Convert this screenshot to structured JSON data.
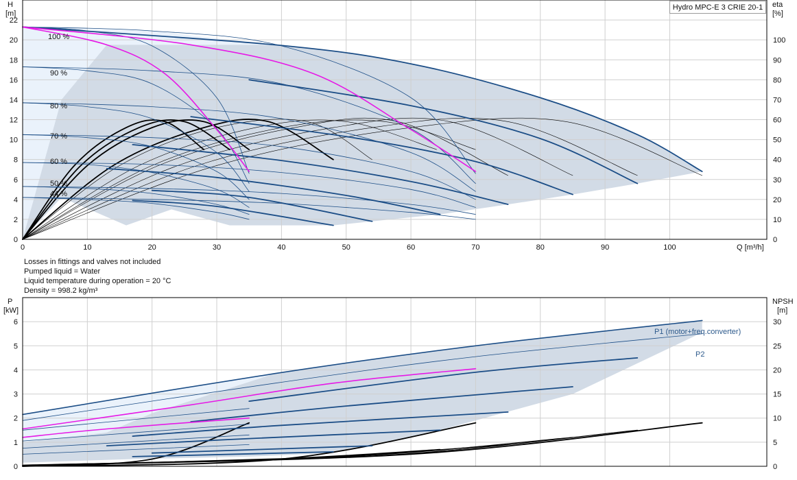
{
  "chart_data": [
    {
      "type": "line",
      "title": "Hydro MPC-E 3 CRIE 20-1",
      "xlabel": "Q [m³/h]",
      "ylabel_left": [
        "H",
        "[m]"
      ],
      "ylabel_right": [
        "eta",
        "[%]"
      ],
      "xlim": [
        0,
        115
      ],
      "ylim_left": [
        0,
        24
      ],
      "ylim_right": [
        0,
        120
      ],
      "x_ticks": [
        "0",
        "10",
        "20",
        "30",
        "40",
        "50",
        "60",
        "70",
        "80",
        "90",
        "100"
      ],
      "y_ticks_left": [
        "0",
        "2",
        "4",
        "6",
        "8",
        "10",
        "12",
        "14",
        "16",
        "18",
        "20",
        "22"
      ],
      "y_ticks_right": [
        "0",
        "10",
        "20",
        "30",
        "40",
        "50",
        "60",
        "70",
        "80",
        "90",
        "100"
      ],
      "grid": true,
      "speed_labels": [
        "100 %",
        "90 %",
        "80 %",
        "70 %",
        "60 %",
        "50 %",
        "44 %"
      ],
      "head_curves_1_pump": [
        {
          "x": [
            0,
            10,
            20,
            30,
            35
          ],
          "y": [
            21.3,
            20.9,
            19.4,
            14.2,
            6.6
          ]
        },
        {
          "x": [
            0,
            10,
            20,
            30,
            35
          ],
          "y": [
            17.3,
            16.9,
            15.6,
            11.1,
            5.6
          ]
        },
        {
          "x": [
            0,
            10,
            20,
            30,
            35
          ],
          "y": [
            13.7,
            13.3,
            12.1,
            8.7,
            4.8
          ]
        },
        {
          "x": [
            0,
            10,
            20,
            30,
            35
          ],
          "y": [
            10.5,
            10.2,
            9.3,
            6.8,
            4.0
          ]
        },
        {
          "x": [
            0,
            10,
            20,
            30,
            35
          ],
          "y": [
            7.7,
            7.5,
            6.7,
            5.0,
            3.2
          ]
        },
        {
          "x": [
            0,
            10,
            20,
            30,
            35
          ],
          "y": [
            5.3,
            5.1,
            4.6,
            3.5,
            2.5
          ]
        },
        {
          "x": [
            0,
            10,
            20,
            30,
            35
          ],
          "y": [
            4.2,
            4.0,
            3.6,
            2.7,
            2.0
          ]
        }
      ],
      "head_curves_2_pumps": [
        {
          "x": [
            0,
            20,
            40,
            60,
            70
          ],
          "y": [
            21.3,
            20.9,
            19.4,
            14.2,
            6.6
          ]
        },
        {
          "x": [
            0,
            20,
            40,
            60,
            70
          ],
          "y": [
            17.3,
            16.9,
            15.6,
            11.1,
            5.6
          ]
        },
        {
          "x": [
            0,
            20,
            40,
            60,
            70
          ],
          "y": [
            13.7,
            13.3,
            12.1,
            8.7,
            4.8
          ]
        },
        {
          "x": [
            0,
            20,
            40,
            60,
            70
          ],
          "y": [
            10.5,
            10.2,
            9.3,
            6.8,
            4.0
          ]
        },
        {
          "x": [
            0,
            20,
            40,
            60,
            70
          ],
          "y": [
            7.7,
            7.5,
            6.7,
            5.0,
            3.2
          ]
        },
        {
          "x": [
            0,
            20,
            40,
            60,
            70
          ],
          "y": [
            5.3,
            5.1,
            4.6,
            3.5,
            2.5
          ]
        },
        {
          "x": [
            0,
            20,
            40,
            60,
            70
          ],
          "y": [
            4.2,
            4.0,
            3.6,
            2.7,
            2.0
          ]
        }
      ],
      "head_curves_3_pumps": [
        {
          "x": [
            0,
            39,
            60,
            80,
            95,
            105
          ],
          "y": [
            21.3,
            19.5,
            17.6,
            14.2,
            10.5,
            6.8
          ]
        },
        {
          "x": [
            35,
            60,
            80,
            95
          ],
          "y": [
            16.0,
            13.4,
            10.1,
            5.6
          ]
        },
        {
          "x": [
            26,
            50,
            70,
            85
          ],
          "y": [
            12.3,
            10.3,
            7.8,
            4.5
          ]
        },
        {
          "x": [
            17,
            40,
            60,
            75
          ],
          "y": [
            9.5,
            7.9,
            5.8,
            3.5
          ]
        },
        {
          "x": [
            13,
            30,
            50,
            64.5
          ],
          "y": [
            7.1,
            6.2,
            4.4,
            2.5
          ]
        },
        {
          "x": [
            20,
            35,
            54
          ],
          "y": [
            4.9,
            4.2,
            1.8
          ]
        },
        {
          "x": [
            17,
            30,
            48
          ],
          "y": [
            3.9,
            3.3,
            1.4
          ]
        }
      ],
      "magenta_curves": [
        {
          "x": [
            0,
            13,
            22,
            30,
            35
          ],
          "y": [
            21.3,
            19.5,
            16.6,
            11.0,
            6.8
          ]
        },
        {
          "x": [
            0,
            26,
            45,
            60,
            70
          ],
          "y": [
            21.3,
            19.5,
            16.6,
            11.0,
            6.8
          ]
        }
      ],
      "efficiency_curves_percent": [
        {
          "x": [
            0,
            10,
            20,
            28,
            35
          ],
          "y": [
            0,
            37,
            56,
            59,
            45
          ]
        },
        {
          "x": [
            0,
            20,
            40,
            56,
            70
          ],
          "y": [
            0,
            37,
            56,
            59,
            45
          ]
        },
        {
          "x": [
            0,
            30,
            60,
            84,
            105
          ],
          "y": [
            0,
            37,
            56,
            59,
            32
          ]
        },
        {
          "x": [
            0,
            9,
            18,
            25,
            32
          ],
          "y": [
            0,
            37,
            56,
            59,
            45
          ]
        },
        {
          "x": [
            0,
            18,
            36,
            50,
            64
          ],
          "y": [
            0,
            37,
            56,
            59,
            45
          ]
        },
        {
          "x": [
            0,
            27,
            54,
            75,
            95
          ],
          "y": [
            0,
            37,
            56,
            59,
            32
          ]
        },
        {
          "x": [
            0,
            8,
            16,
            22,
            28
          ],
          "y": [
            0,
            37,
            56,
            59,
            45
          ]
        },
        {
          "x": [
            0,
            15,
            30,
            44,
            54
          ],
          "y": [
            0,
            37,
            56,
            59,
            40
          ]
        },
        {
          "x": [
            0,
            24,
            48,
            66,
            85
          ],
          "y": [
            0,
            37,
            56,
            59,
            32
          ]
        },
        {
          "x": [
            0,
            14,
            28,
            38,
            48
          ],
          "y": [
            0,
            37,
            56,
            59,
            40
          ]
        },
        {
          "x": [
            0,
            21,
            42,
            58,
            75
          ],
          "y": [
            0,
            37,
            56,
            59,
            32
          ]
        }
      ]
    },
    {
      "type": "line",
      "ylabel_left": [
        "P",
        "[kW]"
      ],
      "ylabel_right": [
        "NPSH",
        "[m]"
      ],
      "xlim": [
        0,
        115
      ],
      "ylim_left": [
        0,
        7
      ],
      "ylim_right": [
        0,
        35
      ],
      "y_ticks_left": [
        "0",
        "1",
        "2",
        "3",
        "4",
        "5",
        "6"
      ],
      "y_ticks_right": [
        "0",
        "5",
        "10",
        "15",
        "20",
        "25",
        "30"
      ],
      "grid": true,
      "series_labels": [
        "P1 (motor+freq.converter)",
        "P2"
      ],
      "p1_curves": [
        {
          "x": [
            0,
            39,
            70,
            105
          ],
          "y": [
            2.15,
            3.85,
            5.0,
            6.05
          ]
        },
        {
          "x": [
            35,
            70,
            95
          ],
          "y": [
            2.7,
            3.9,
            4.5
          ]
        },
        {
          "x": [
            26,
            50,
            85
          ],
          "y": [
            1.85,
            2.5,
            3.3
          ]
        },
        {
          "x": [
            17,
            40,
            75
          ],
          "y": [
            1.25,
            1.7,
            2.25
          ]
        },
        {
          "x": [
            13,
            35,
            64.5
          ],
          "y": [
            0.85,
            1.15,
            1.5
          ]
        },
        {
          "x": [
            20,
            54
          ],
          "y": [
            0.55,
            0.85
          ]
        },
        {
          "x": [
            17,
            48
          ],
          "y": [
            0.4,
            0.6
          ]
        }
      ],
      "p2_curves": [
        {
          "x": [
            0,
            39,
            70,
            105
          ],
          "y": [
            1.9,
            3.45,
            4.55,
            5.5
          ]
        },
        {
          "x": [
            0,
            35
          ],
          "y": [
            1.5,
            2.4
          ]
        },
        {
          "x": [
            0,
            35
          ],
          "y": [
            1.05,
            1.75
          ]
        },
        {
          "x": [
            0,
            35
          ],
          "y": [
            0.75,
            1.3
          ]
        },
        {
          "x": [
            0,
            35
          ],
          "y": [
            0.5,
            0.9
          ]
        }
      ],
      "magenta_curves": [
        {
          "x": [
            0,
            26,
            48,
            70
          ],
          "y": [
            1.55,
            2.55,
            3.45,
            4.05
          ]
        },
        {
          "x": [
            0,
            13,
            35
          ],
          "y": [
            1.2,
            1.55,
            2.0
          ]
        }
      ],
      "npsh_curves_m": [
        {
          "x": [
            0,
            20,
            35
          ],
          "y": [
            0,
            1.5,
            9
          ]
        },
        {
          "x": [
            0,
            40,
            70
          ],
          "y": [
            0,
            1.5,
            9
          ]
        },
        {
          "x": [
            0,
            60,
            105
          ],
          "y": [
            0.2,
            2.5,
            9
          ]
        },
        {
          "x": [
            0,
            55,
            95
          ],
          "y": [
            0.2,
            2.2,
            7.5
          ]
        },
        {
          "x": [
            0,
            50,
            85
          ],
          "y": [
            0.2,
            2.0,
            6
          ]
        },
        {
          "x": [
            0,
            45,
            75
          ],
          "y": [
            0.2,
            1.8,
            4.5
          ]
        },
        {
          "x": [
            0,
            40,
            64.5
          ],
          "y": [
            0.2,
            1.6,
            3.5
          ]
        }
      ]
    }
  ],
  "notes": [
    "Losses in fittings and valves not included",
    "Pumped liquid = Water",
    "Liquid temperature during operation = 20 °C",
    "Density = 998.2 kg/m³"
  ],
  "colors": {
    "grid": "#cfcfcf",
    "region_dark": "#d2dbe6",
    "region_light": "#eaf2fb",
    "head_curve": "#1b4d86",
    "efficiency_curve": "#000000",
    "magenta": "#e619e6",
    "label_blue": "#2d5a8c"
  }
}
